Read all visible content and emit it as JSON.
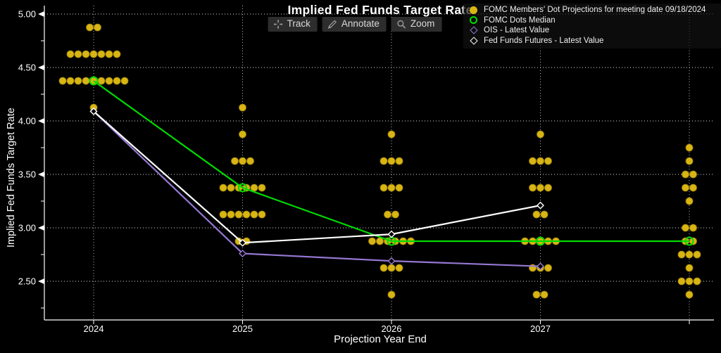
{
  "header": {
    "title": "Implied Fed Funds Target Rate"
  },
  "toolbar": {
    "buttons": [
      {
        "label": "Track",
        "icon": "track-crosshair-icon"
      },
      {
        "label": "Annotate",
        "icon": "annotate-pencil-icon"
      },
      {
        "label": "Zoom",
        "icon": "zoom-magnifier-icon"
      }
    ]
  },
  "legend": {
    "items": [
      {
        "label": "FOMC Members' Dot Projections for meeting date 09/18/2024",
        "marker": "filled-circle",
        "color": "#d9b514"
      },
      {
        "label": "FOMC Dots Median",
        "marker": "open-circle",
        "color": "#00dc00"
      },
      {
        "label": "OIS - Latest Value",
        "marker": "open-diamond",
        "color": "#9678d2"
      },
      {
        "label": "Fed Funds Futures - Latest Value",
        "marker": "open-diamond",
        "color": "#ffffff"
      }
    ]
  },
  "axes": {
    "x_label": "Projection Year End",
    "y_label": "Implied Fed Funds Target Rate",
    "x_tick_labels": [
      "2024",
      "2025",
      "2026",
      "2027"
    ],
    "y_tick_labels": [
      "2.50",
      "3.00",
      "3.50",
      "4.00",
      "4.50",
      "5.00"
    ]
  },
  "colors": {
    "background": "#000000",
    "dots": "#d9b514",
    "dots_edge": "#97800a",
    "median_line": "#00dc00",
    "ois_line": "#9678d2",
    "futures_line": "#ffffff",
    "axis": "#ffffff",
    "grid_h": "#dddddd",
    "grid_v": "#b5b5b5"
  },
  "chart_data": {
    "type": "scatter",
    "title": "Implied Fed Funds Target Rate",
    "xlabel": "Projection Year End",
    "ylabel": "Implied Fed Funds Target Rate",
    "ylim": [
      2.25,
      5.0
    ],
    "yticks": [
      2.5,
      3.0,
      3.5,
      4.0,
      4.5,
      5.0
    ],
    "y_minor_ticks": [
      2.25,
      2.75,
      3.25,
      3.75,
      4.25,
      4.75
    ],
    "grid": "dotted",
    "legend_position": "top-right",
    "categories": [
      "2024",
      "2025",
      "2026",
      "2027",
      ""
    ],
    "dot_projections": {
      "name": "FOMC Members' Dot Projections for meeting date 09/18/2024",
      "meeting_date": "09/18/2024",
      "columns": [
        {
          "year": "2024",
          "dots": [
            {
              "rate": 4.875,
              "count": 2
            },
            {
              "rate": 4.625,
              "count": 7
            },
            {
              "rate": 4.375,
              "count": 9
            },
            {
              "rate": 4.125,
              "count": 1
            }
          ]
        },
        {
          "year": "2025",
          "dots": [
            {
              "rate": 4.125,
              "count": 1
            },
            {
              "rate": 3.875,
              "count": 1
            },
            {
              "rate": 3.625,
              "count": 3
            },
            {
              "rate": 3.375,
              "count": 6
            },
            {
              "rate": 3.125,
              "count": 6
            },
            {
              "rate": 2.875,
              "count": 2
            }
          ]
        },
        {
          "year": "2026",
          "dots": [
            {
              "rate": 3.875,
              "count": 1
            },
            {
              "rate": 3.625,
              "count": 3
            },
            {
              "rate": 3.375,
              "count": 3
            },
            {
              "rate": 3.125,
              "count": 2
            },
            {
              "rate": 2.875,
              "count": 6
            },
            {
              "rate": 2.625,
              "count": 3
            },
            {
              "rate": 2.375,
              "count": 1
            }
          ]
        },
        {
          "year": "2027",
          "dots": [
            {
              "rate": 3.875,
              "count": 1
            },
            {
              "rate": 3.625,
              "count": 3
            },
            {
              "rate": 3.375,
              "count": 3
            },
            {
              "rate": 3.125,
              "count": 2
            },
            {
              "rate": 2.875,
              "count": 5
            },
            {
              "rate": 2.625,
              "count": 3
            },
            {
              "rate": 2.375,
              "count": 2
            }
          ]
        },
        {
          "year": "",
          "dots": [
            {
              "rate": 3.75,
              "count": 1
            },
            {
              "rate": 3.625,
              "count": 1
            },
            {
              "rate": 3.5,
              "count": 2
            },
            {
              "rate": 3.375,
              "count": 2
            },
            {
              "rate": 3.25,
              "count": 1
            },
            {
              "rate": 3.0,
              "count": 2
            },
            {
              "rate": 2.875,
              "count": 2
            },
            {
              "rate": 2.75,
              "count": 3
            },
            {
              "rate": 2.625,
              "count": 1
            },
            {
              "rate": 2.5,
              "count": 3
            },
            {
              "rate": 2.375,
              "count": 1
            }
          ]
        }
      ]
    },
    "series": [
      {
        "name": "FOMC Dots Median",
        "type": "line",
        "marker": "open-circle",
        "color": "#00dc00",
        "x": [
          0,
          1,
          2,
          3,
          4
        ],
        "values": [
          4.375,
          3.375,
          2.875,
          2.875,
          2.875
        ]
      },
      {
        "name": "OIS - Latest Value",
        "type": "line",
        "marker": "open-diamond",
        "color": "#9678d2",
        "x": [
          0,
          1,
          2,
          3
        ],
        "values": [
          4.09,
          2.76,
          2.69,
          2.64
        ]
      },
      {
        "name": "Fed Funds Futures - Latest Value",
        "type": "line",
        "marker": "open-diamond",
        "color": "#ffffff",
        "x": [
          0,
          1,
          2,
          3
        ],
        "values": [
          4.09,
          2.86,
          2.94,
          3.21
        ]
      }
    ]
  }
}
